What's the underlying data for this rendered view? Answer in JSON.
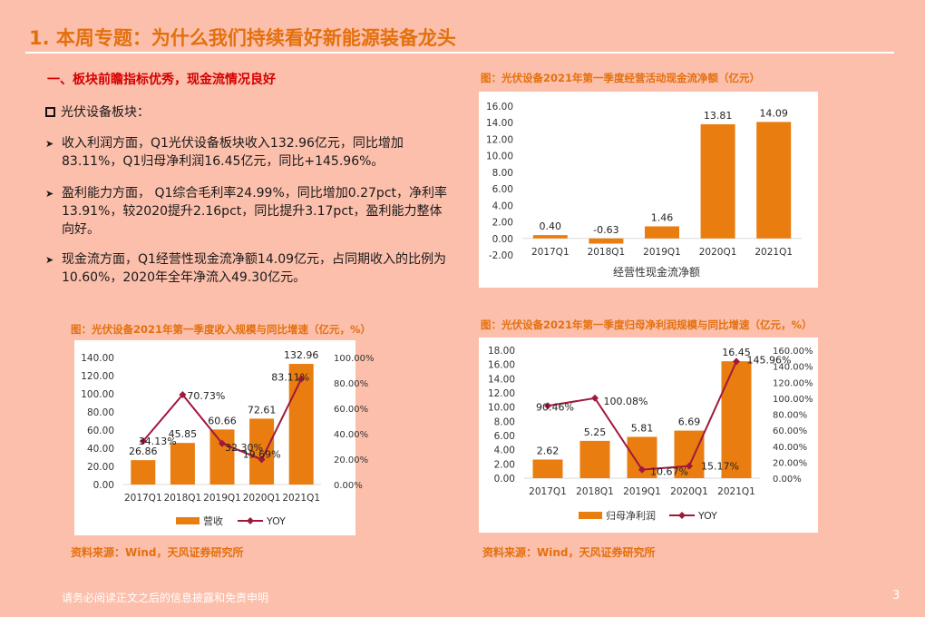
{
  "page_title": "1. 本周专题：为什么我们持续看好新能源装备龙头",
  "section_heading": "一、板块前瞻指标优秀，现金流情况良好",
  "bullet_main": "光伏设备板块：",
  "points": [
    "收入利润方面，Q1光伏设备板块收入132.96亿元，同比增加83.11%，Q1归母净利润16.45亿元，同比+145.96%。",
    "盈利能力方面， Q1综合毛利率24.99%，同比增加0.27pct，净利率13.91%，较2020提升2.16pct，同比提升3.17pct，盈利能力整体向好。",
    "现金流方面，Q1经营性现金流净额14.09亿元，占同期收入的比例为10.60%，2020年全年净流入49.30亿元。"
  ],
  "source_label": "资料来源：Wind，天风证券研究所",
  "footer": "请务必阅读正文之后的信息披露和免责申明",
  "page_number": "3",
  "colors": {
    "bar": "#e97d10",
    "line": "#a0183c",
    "accent": "#e3700d"
  },
  "chart_data": [
    {
      "type": "bar",
      "title": "图：光伏设备2021年第一季度经营活动现金流净额（亿元）",
      "categories": [
        "2017Q1",
        "2018Q1",
        "2019Q1",
        "2020Q1",
        "2021Q1"
      ],
      "series": [
        {
          "name": "经营性现金流净额",
          "values": [
            0.4,
            -0.63,
            1.46,
            13.81,
            14.09
          ]
        }
      ],
      "value_labels": [
        "0.40",
        "-0.63",
        "1.46",
        "13.81",
        "14.09"
      ],
      "ylim": [
        -2,
        16
      ],
      "yticks": [
        "-2.00",
        "0.00",
        "2.00",
        "4.00",
        "6.00",
        "8.00",
        "10.00",
        "12.00",
        "14.00",
        "16.00"
      ],
      "grid": false,
      "legend": "bottom"
    },
    {
      "type": "bar",
      "title": "图：光伏设备2021年第一季度收入规模与同比增速（亿元，%）",
      "categories": [
        "2017Q1",
        "2018Q1",
        "2019Q1",
        "2020Q1",
        "2021Q1"
      ],
      "series": [
        {
          "name": "营收",
          "type": "bar",
          "axis": "left",
          "values": [
            26.86,
            45.85,
            60.66,
            72.61,
            132.96
          ]
        },
        {
          "name": "YOY",
          "type": "line",
          "axis": "right",
          "values": [
            34.13,
            70.73,
            32.3,
            19.69,
            83.11
          ]
        }
      ],
      "bar_labels": [
        "26.86",
        "45.85",
        "60.66",
        "72.61",
        "132.96"
      ],
      "line_labels": [
        "34.13%",
        "70.73%",
        "32.30%",
        "19.69%",
        "83.11%"
      ],
      "ylim": [
        0,
        140
      ],
      "yticks": [
        "0.00",
        "20.00",
        "40.00",
        "60.00",
        "80.00",
        "100.00",
        "120.00",
        "140.00"
      ],
      "y2lim": [
        0,
        100
      ],
      "y2ticks": [
        "0.00%",
        "20.00%",
        "40.00%",
        "60.00%",
        "80.00%",
        "100.00%"
      ],
      "grid": false,
      "legend": "bottom"
    },
    {
      "type": "bar",
      "title": "图：光伏设备2021年第一季度归母净利润规模与同比增速（亿元，%）",
      "categories": [
        "2017Q1",
        "2018Q1",
        "2019Q1",
        "2020Q1",
        "2021Q1"
      ],
      "series": [
        {
          "name": "归母净利润",
          "type": "bar",
          "axis": "left",
          "values": [
            2.62,
            5.25,
            5.81,
            6.69,
            16.45
          ]
        },
        {
          "name": "YOY",
          "type": "line",
          "axis": "right",
          "values": [
            90.46,
            100.08,
            10.67,
            15.17,
            145.96
          ]
        }
      ],
      "bar_labels": [
        "2.62",
        "5.25",
        "5.81",
        "6.69",
        "16.45"
      ],
      "line_labels": [
        "90.46%",
        "100.08%",
        "10.67%",
        "15.17%",
        "145.96%"
      ],
      "ylim": [
        0,
        18
      ],
      "yticks": [
        "0.00",
        "2.00",
        "4.00",
        "6.00",
        "8.00",
        "10.00",
        "12.00",
        "14.00",
        "16.00",
        "18.00"
      ],
      "y2lim": [
        0,
        160
      ],
      "y2ticks": [
        "0.00%",
        "20.00%",
        "40.00%",
        "60.00%",
        "80.00%",
        "100.00%",
        "120.00%",
        "140.00%",
        "160.00%"
      ],
      "grid": false,
      "legend": "bottom"
    }
  ]
}
